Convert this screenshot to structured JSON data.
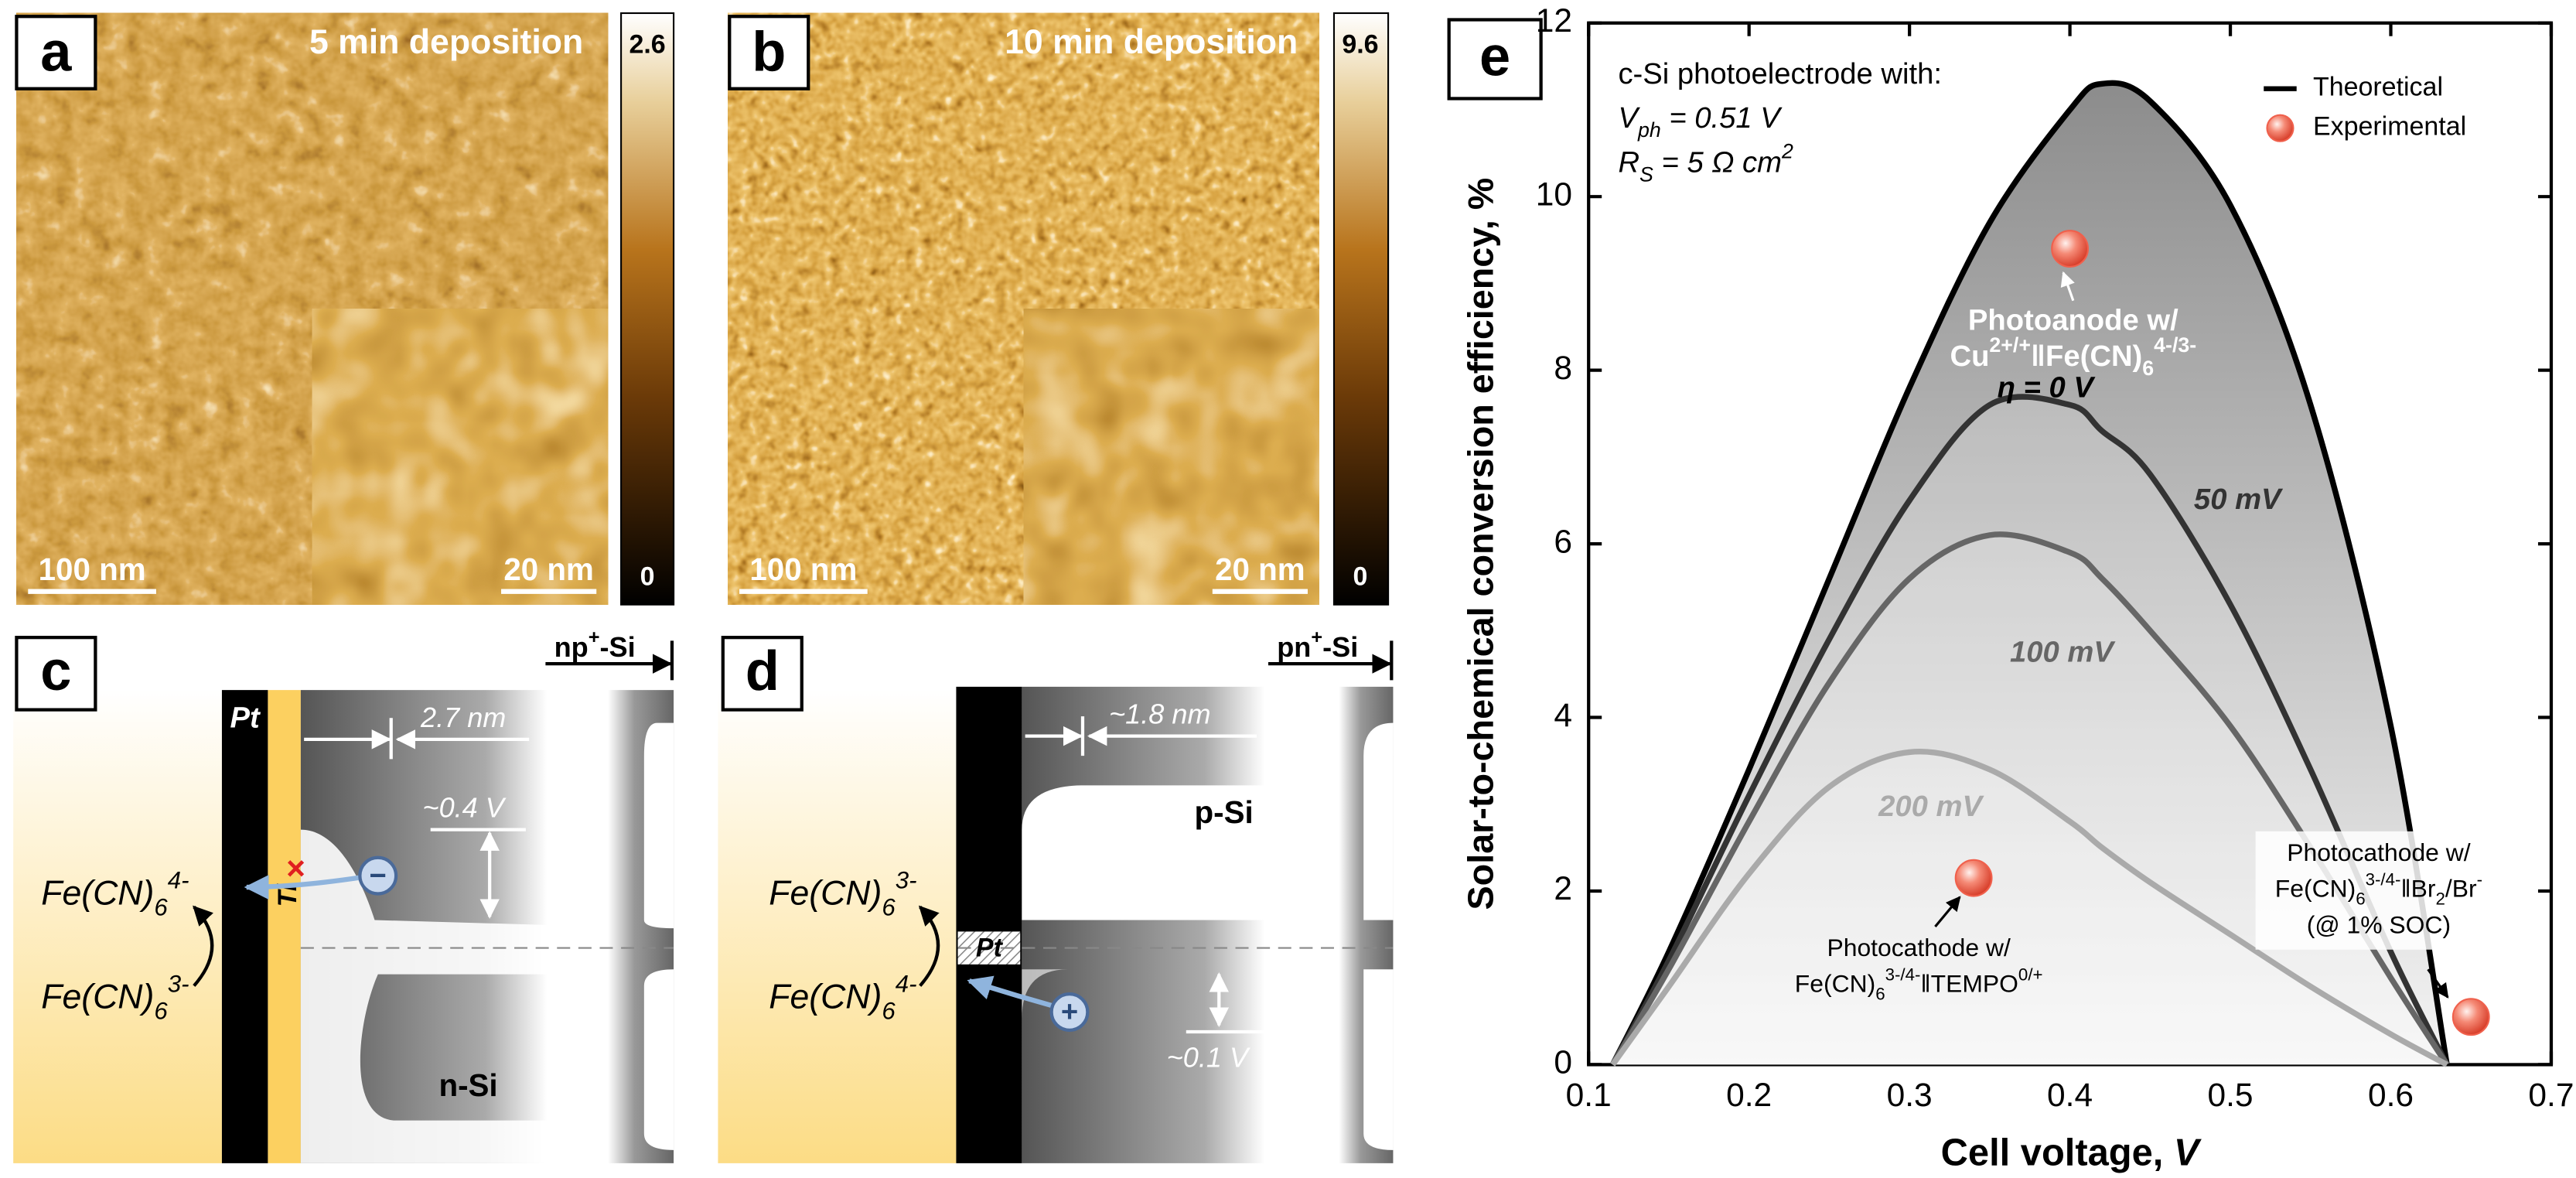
{
  "panels": {
    "a": {
      "label": "a",
      "title": "5 min deposition",
      "scale_max": "2.6",
      "scale_min": "0",
      "scalebar": "100 nm",
      "inset_scalebar": "20 nm"
    },
    "b": {
      "label": "b",
      "title": "10 min deposition",
      "scale_max": "9.6",
      "scale_min": "0",
      "scalebar": "100 nm",
      "inset_scalebar": "20 nm"
    },
    "c": {
      "label": "c",
      "metal": "Pt",
      "interlayer": "Ti",
      "substrate": [
        {
          "t": "np"
        },
        {
          "t": "+",
          "s": "sup"
        },
        {
          "t": "-Si"
        }
      ],
      "thickness": "2.7 nm",
      "barrier": "~0.4 V",
      "upper_species": [
        {
          "t": "Fe(CN)"
        },
        {
          "t": "6",
          "s": "sub"
        },
        {
          "t": "4-",
          "s": "sup"
        }
      ],
      "lower_species": [
        {
          "t": "Fe(CN)"
        },
        {
          "t": "6",
          "s": "sub"
        },
        {
          "t": "3-",
          "s": "sup"
        }
      ],
      "semiconductor": "n-Si",
      "charge": "−"
    },
    "d": {
      "label": "d",
      "metal": "Pt",
      "substrate": [
        {
          "t": "pn"
        },
        {
          "t": "+",
          "s": "sup"
        },
        {
          "t": "-Si"
        }
      ],
      "thickness": "~1.8 nm",
      "barrier": "~0.1 V",
      "upper_species": [
        {
          "t": "Fe(CN)"
        },
        {
          "t": "6",
          "s": "sub"
        },
        {
          "t": "3-",
          "s": "sup"
        }
      ],
      "lower_species": [
        {
          "t": "Fe(CN)"
        },
        {
          "t": "6",
          "s": "sub"
        },
        {
          "t": "4-",
          "s": "sup"
        }
      ],
      "semiconductor": "p-Si",
      "charge": "+"
    }
  },
  "chart_data": {
    "type": "line",
    "panel_label": "e",
    "xlabel": [
      {
        "t": "Cell voltage, "
      },
      {
        "t": "V",
        "s": "i"
      }
    ],
    "ylabel": "Solar-to-chemical conversion efficiency, %",
    "xlim": [
      0.1,
      0.7
    ],
    "xticks": [
      0.1,
      0.2,
      0.3,
      0.4,
      0.5,
      0.6,
      0.7
    ],
    "ylim": [
      0,
      12
    ],
    "yticks": [
      0,
      2,
      4,
      6,
      8,
      10,
      12
    ],
    "annotations": [
      "c-Si photoelectrode with:",
      [
        {
          "t": "V",
          "s": "i"
        },
        {
          "t": "ph",
          "s": "i sub"
        },
        {
          "t": " = 0.51 V",
          "s": "i"
        }
      ],
      [
        {
          "t": "R",
          "s": "i"
        },
        {
          "t": "S",
          "s": "i sub"
        },
        {
          "t": " = 5 Ω cm",
          "s": "i"
        },
        {
          "t": "2",
          "s": "i sup"
        }
      ]
    ],
    "legend": {
      "position": "upper right",
      "items": [
        {
          "name": "Theoretical",
          "color": "#000000"
        },
        {
          "name": "Experimental",
          "color": "#f0604c"
        }
      ]
    },
    "x": [
      0.115,
      0.15,
      0.2,
      0.25,
      0.3,
      0.35,
      0.4,
      0.42,
      0.45,
      0.5,
      0.55,
      0.6,
      0.635
    ],
    "series": [
      {
        "name": "η = 0 V",
        "color": "#000000",
        "values": [
          0,
          1.3,
          3.4,
          5.6,
          7.8,
          9.7,
          11.0,
          11.3,
          11.1,
          9.9,
          7.6,
          3.9,
          0
        ]
      },
      {
        "name": "50 mV",
        "color": "#333333",
        "values": [
          0,
          1.2,
          3.1,
          4.9,
          6.5,
          7.6,
          7.6,
          7.3,
          6.8,
          5.3,
          3.4,
          1.3,
          0
        ]
      },
      {
        "name": "100 mV",
        "color": "#666666",
        "values": [
          0,
          1.1,
          2.8,
          4.4,
          5.6,
          6.1,
          5.9,
          5.6,
          5.0,
          3.9,
          2.5,
          1.0,
          0
        ]
      },
      {
        "name": "200 mV",
        "color": "#aaaaaa",
        "values": [
          0,
          0.9,
          2.2,
          3.2,
          3.6,
          3.4,
          2.8,
          2.5,
          2.1,
          1.5,
          0.9,
          0.35,
          0
        ]
      }
    ],
    "points": {
      "name": "Experimental",
      "color": "#f0604c",
      "x": [
        0.4,
        0.34,
        0.65
      ],
      "y": [
        9.4,
        2.15,
        0.55
      ],
      "labels": [
        [
          "Photoanode w/",
          [
            {
              "t": "Cu"
            },
            {
              "t": "2+/+",
              "s": "sup"
            },
            {
              "t": "‖Fe(CN)"
            },
            {
              "t": "6",
              "s": "sub"
            },
            {
              "t": "4-/3-",
              "s": "sup"
            }
          ]
        ],
        [
          "Photocathode w/",
          [
            {
              "t": "Fe(CN)"
            },
            {
              "t": "6",
              "s": "sub"
            },
            {
              "t": "3-/4-",
              "s": "sup"
            },
            {
              "t": "‖TEMPO"
            },
            {
              "t": "0/+",
              "s": "sup"
            }
          ]
        ],
        [
          "Photocathode w/",
          [
            {
              "t": "Fe(CN)"
            },
            {
              "t": "6",
              "s": "sub"
            },
            {
              "t": "3-/4-",
              "s": "sup"
            },
            {
              "t": "‖Br"
            },
            {
              "t": "2",
              "s": "sub"
            },
            {
              "t": "/Br"
            },
            {
              "t": "-",
              "s": "sup"
            }
          ],
          "(@ 1% SOC)"
        ]
      ]
    }
  }
}
